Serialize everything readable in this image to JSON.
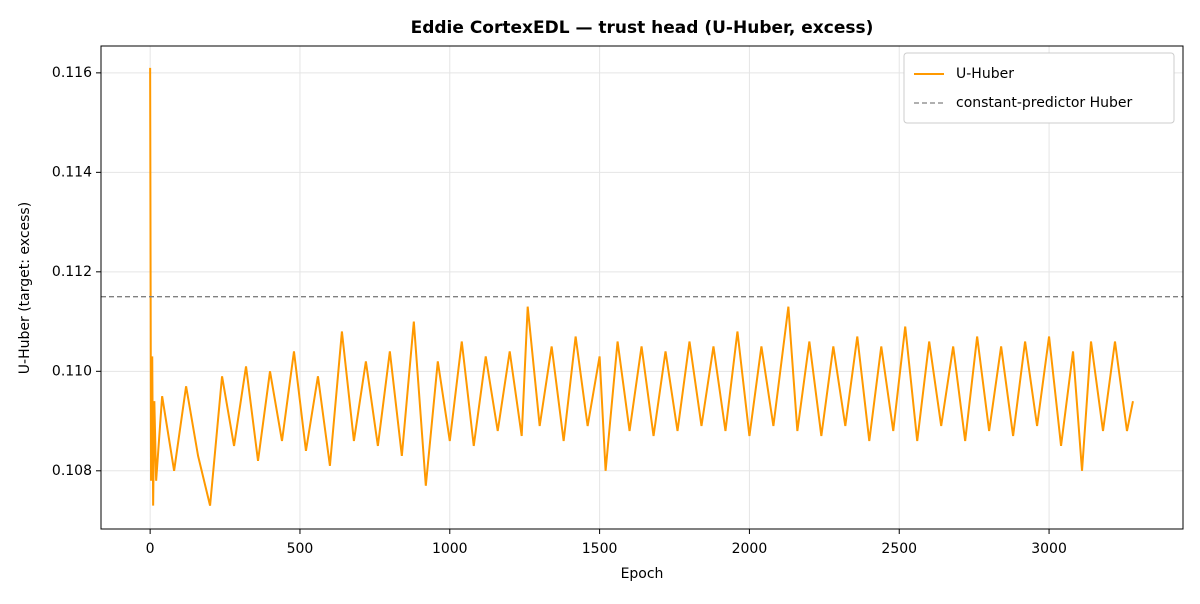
{
  "chart_data": {
    "type": "line",
    "title": "Eddie CortexEDL — trust head (U-Huber, excess)",
    "x_label": "Epoch",
    "y_label": "U-Huber  (target: excess)",
    "x": [
      0,
      3,
      7,
      10,
      14,
      20,
      40,
      80,
      120,
      160,
      200,
      240,
      280,
      320,
      360,
      400,
      440,
      480,
      520,
      560,
      600,
      640,
      680,
      720,
      760,
      800,
      840,
      880,
      920,
      960,
      1000,
      1040,
      1080,
      1120,
      1160,
      1200,
      1240,
      1260,
      1300,
      1340,
      1380,
      1420,
      1460,
      1500,
      1520,
      1560,
      1600,
      1640,
      1680,
      1720,
      1760,
      1800,
      1840,
      1880,
      1920,
      1960,
      2000,
      2040,
      2080,
      2130,
      2160,
      2200,
      2240,
      2280,
      2320,
      2360,
      2400,
      2440,
      2480,
      2520,
      2560,
      2600,
      2640,
      2680,
      2720,
      2760,
      2800,
      2840,
      2880,
      2920,
      2960,
      3000,
      3040,
      3080,
      3110,
      3140,
      3180,
      3220,
      3260,
      3280
    ],
    "series": [
      {
        "name": "U-Huber",
        "color": "#ff9900",
        "values": [
          0.1161,
          0.1078,
          0.1103,
          0.1073,
          0.1094,
          0.1078,
          0.1095,
          0.108,
          0.1097,
          0.1083,
          0.1073,
          0.1099,
          0.1085,
          0.1101,
          0.1082,
          0.11,
          0.1086,
          0.1104,
          0.1084,
          0.1099,
          0.1081,
          0.1108,
          0.1086,
          0.1102,
          0.1085,
          0.1104,
          0.1083,
          0.111,
          0.1077,
          0.1102,
          0.1086,
          0.1106,
          0.1085,
          0.1103,
          0.1088,
          0.1104,
          0.1087,
          0.1113,
          0.1089,
          0.1105,
          0.1086,
          0.1107,
          0.1089,
          0.1103,
          0.108,
          0.1106,
          0.1088,
          0.1105,
          0.1087,
          0.1104,
          0.1088,
          0.1106,
          0.1089,
          0.1105,
          0.1088,
          0.1108,
          0.1087,
          0.1105,
          0.1089,
          0.1113,
          0.1088,
          0.1106,
          0.1087,
          0.1105,
          0.1089,
          0.1107,
          0.1086,
          0.1105,
          0.1088,
          0.1109,
          0.1086,
          0.1106,
          0.1089,
          0.1105,
          0.1086,
          0.1107,
          0.1088,
          0.1105,
          0.1087,
          0.1106,
          0.1089,
          0.1107,
          0.1085,
          0.1104,
          0.108,
          0.1106,
          0.1088,
          0.1106,
          0.1088,
          0.1094
        ]
      }
    ],
    "reference_line": {
      "name": "constant-predictor Huber",
      "value": 0.1115,
      "color": "#808080"
    },
    "xlim": [
      -164,
      3447
    ],
    "ylim": [
      0.10683,
      0.11654
    ],
    "xticks": [
      0,
      500,
      1000,
      1500,
      2000,
      2500,
      3000
    ],
    "yticks": [
      0.108,
      {
        "value": 0.11,
        "label": "0.110"
      },
      0.112,
      0.114,
      0.116
    ],
    "grid": true,
    "legend": "upper-right"
  }
}
